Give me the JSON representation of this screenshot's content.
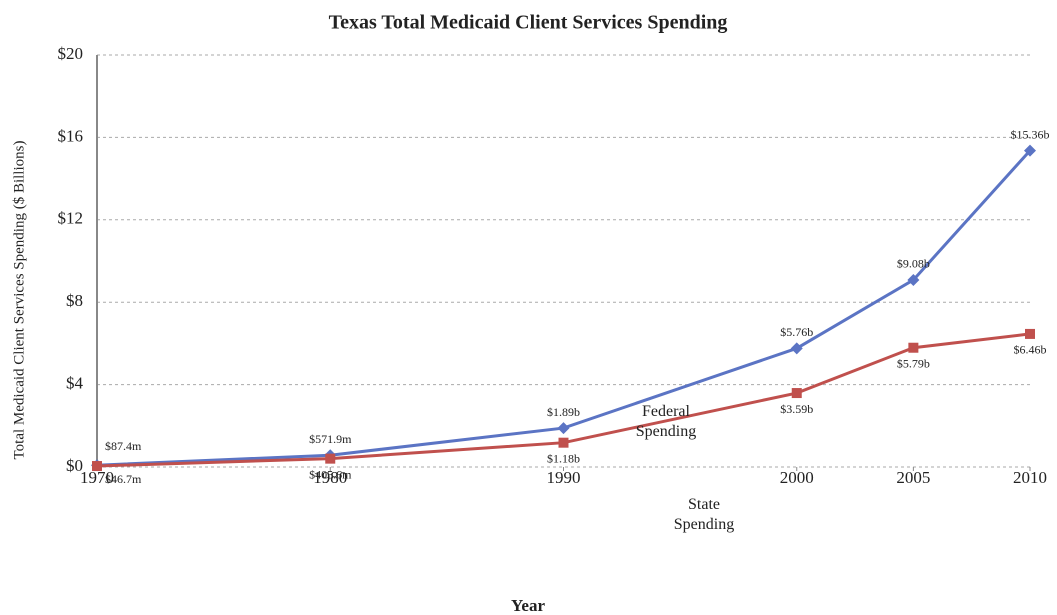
{
  "chart_data": {
    "type": "line",
    "title": "Texas Total Medicaid Client Services Spending",
    "x_label": "Year",
    "y_label": "Total Medicaid Client Services Spending ($ Billions)",
    "x": [
      1970,
      1980,
      1990,
      2000,
      2005,
      2010
    ],
    "xlim": [
      1970,
      2010
    ],
    "xticks": [
      1970,
      1980,
      1990,
      2000,
      2005,
      2010
    ],
    "ylim": [
      0,
      20
    ],
    "yticks": [
      {
        "value": 0,
        "label": "$0"
      },
      {
        "value": 4,
        "label": "$4"
      },
      {
        "value": 8,
        "label": "$8"
      },
      {
        "value": 12,
        "label": "$12"
      },
      {
        "value": 16,
        "label": "$16"
      },
      {
        "value": 20,
        "label": "$20"
      }
    ],
    "grid": true,
    "series": [
      {
        "name": "Federal Spending",
        "color": "#5b74c4",
        "marker": "diamond",
        "values": [
          0.0874,
          0.5719,
          1.89,
          5.76,
          9.08,
          15.36
        ],
        "value_labels": [
          "$87.4m",
          "$571.9m",
          "$1.89b",
          "$5.76b",
          "$9.08b",
          "$15.36b"
        ]
      },
      {
        "name": "State Spending",
        "color": "#c0504d",
        "marker": "square",
        "values": [
          0.0467,
          0.4056,
          1.18,
          3.59,
          5.79,
          6.46
        ],
        "value_labels": [
          "$46.7m",
          "$405.6m",
          "$1.18b",
          "$3.59b",
          "$5.79b",
          "$6.46b"
        ]
      }
    ]
  }
}
